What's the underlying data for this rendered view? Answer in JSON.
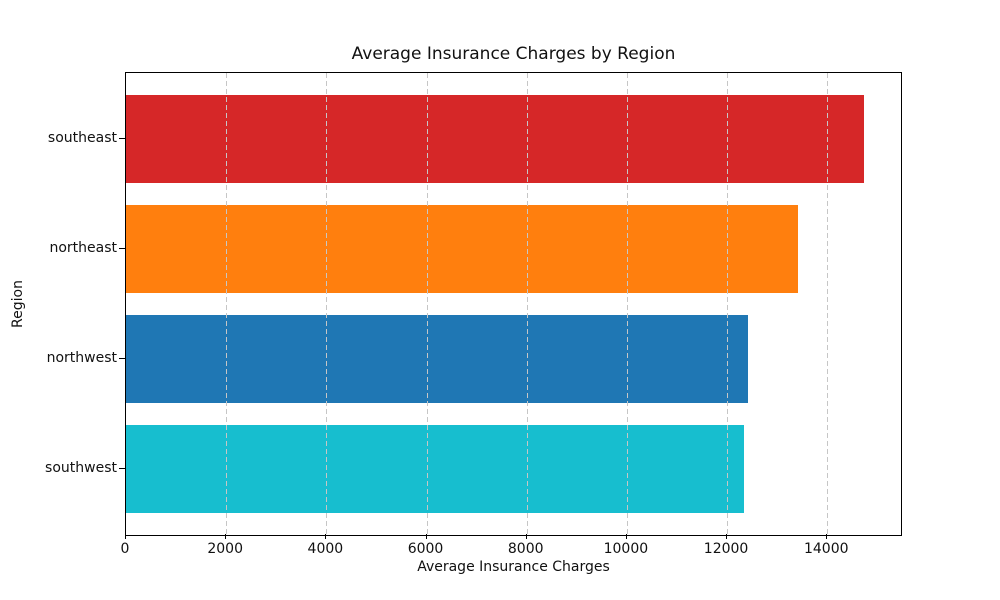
{
  "chart_data": {
    "type": "bar",
    "orientation": "horizontal",
    "title": "Average Insurance Charges by Region",
    "xlabel": "Average Insurance Charges",
    "ylabel": "Region",
    "categories": [
      "southeast",
      "northeast",
      "northwest",
      "southwest"
    ],
    "values": [
      14735,
      13406,
      12418,
      12347
    ],
    "bar_colors": [
      "#d62728",
      "#ff7f0e",
      "#1f77b4",
      "#17becf"
    ],
    "xlim": [
      0,
      15472
    ],
    "xticks": [
      0,
      2000,
      4000,
      6000,
      8000,
      10000,
      12000,
      14000
    ],
    "grid": {
      "axis": "x",
      "style": "dashed",
      "color": "#c6c6c6",
      "above_bars": true
    },
    "legend": "none",
    "background": "#ffffff"
  }
}
